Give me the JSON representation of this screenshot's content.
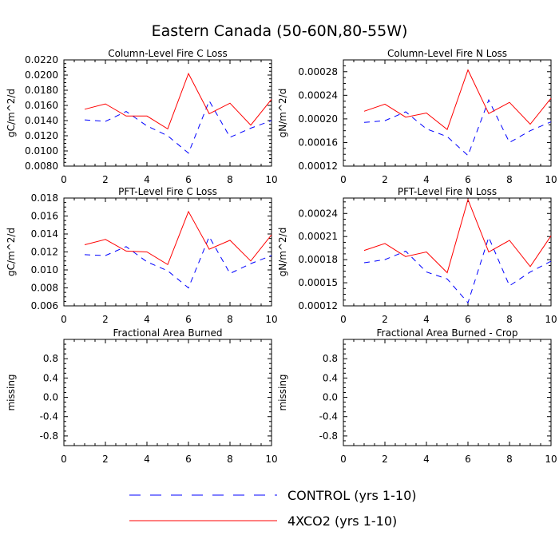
{
  "title": "Eastern Canada (50-60N,80-55W)",
  "colors": {
    "control": "#0000ff",
    "co2": "#ff0000"
  },
  "legend": [
    {
      "label": "CONTROL (yrs 1-10)",
      "series": "control",
      "dash": true
    },
    {
      "label": "4XCO2 (yrs 1-10)",
      "series": "co2",
      "dash": false
    }
  ],
  "chart_data": [
    {
      "type": "line",
      "title": "Column-Level Fire C Loss",
      "ylabel": "gC/m^2/d",
      "xlabel": "",
      "xlim": [
        0,
        10
      ],
      "ylim": [
        0.008,
        0.022
      ],
      "xticks": [
        "0",
        "2",
        "4",
        "6",
        "8",
        "10"
      ],
      "yticks": [
        "0.0080",
        "0.0100",
        "0.0120",
        "0.0140",
        "0.0160",
        "0.0180",
        "0.0200",
        "0.0220"
      ],
      "x": [
        1,
        2,
        3,
        4,
        5,
        6,
        7,
        8,
        9,
        10
      ],
      "series": [
        {
          "name": "CONTROL (yrs 1-10)",
          "key": "control",
          "values": [
            0.0141,
            0.0139,
            0.0152,
            0.0133,
            0.012,
            0.0097,
            0.0166,
            0.0118,
            0.013,
            0.014
          ]
        },
        {
          "name": "4XCO2 (yrs 1-10)",
          "key": "co2",
          "values": [
            0.0155,
            0.0162,
            0.0146,
            0.0146,
            0.0129,
            0.0202,
            0.0149,
            0.0163,
            0.0134,
            0.0168
          ]
        }
      ]
    },
    {
      "type": "line",
      "title": "Column-Level Fire N Loss",
      "ylabel": "gN/m^2/d",
      "xlabel": "",
      "xlim": [
        0,
        10
      ],
      "ylim": [
        0.00012,
        0.0003
      ],
      "xticks": [
        "0",
        "2",
        "4",
        "6",
        "8",
        "10"
      ],
      "yticks": [
        "0.00012",
        "0.00016",
        "0.00020",
        "0.00024",
        "0.00028"
      ],
      "x": [
        1,
        2,
        3,
        4,
        5,
        6,
        7,
        8,
        9,
        10
      ],
      "series": [
        {
          "name": "CONTROL (yrs 1-10)",
          "key": "control",
          "values": [
            0.000194,
            0.000197,
            0.000212,
            0.000183,
            0.00017,
            0.000138,
            0.000232,
            0.00016,
            0.00018,
            0.000195
          ]
        },
        {
          "name": "4XCO2 (yrs 1-10)",
          "key": "co2",
          "values": [
            0.000213,
            0.000225,
            0.000203,
            0.00021,
            0.000182,
            0.000283,
            0.000209,
            0.000228,
            0.000191,
            0.000235
          ]
        }
      ]
    },
    {
      "type": "line",
      "title": "PFT-Level Fire C Loss",
      "ylabel": "gC/m^2/d",
      "xlabel": "",
      "xlim": [
        0,
        10
      ],
      "ylim": [
        0.006,
        0.018
      ],
      "xticks": [
        "0",
        "2",
        "4",
        "6",
        "8",
        "10"
      ],
      "yticks": [
        "0.006",
        "0.008",
        "0.010",
        "0.012",
        "0.014",
        "0.016",
        "0.018"
      ],
      "x": [
        1,
        2,
        3,
        4,
        5,
        6,
        7,
        8,
        9,
        10
      ],
      "series": [
        {
          "name": "CONTROL (yrs 1-10)",
          "key": "control",
          "values": [
            0.0117,
            0.0116,
            0.0126,
            0.0109,
            0.0099,
            0.008,
            0.0137,
            0.0096,
            0.0107,
            0.0116
          ]
        },
        {
          "name": "4XCO2 (yrs 1-10)",
          "key": "co2",
          "values": [
            0.0128,
            0.0134,
            0.0121,
            0.012,
            0.0106,
            0.0165,
            0.0123,
            0.0133,
            0.011,
            0.0139
          ]
        }
      ]
    },
    {
      "type": "line",
      "title": "PFT-Level Fire N Loss",
      "ylabel": "gN/m^2/d",
      "xlabel": "",
      "xlim": [
        0,
        10
      ],
      "ylim": [
        0.00012,
        0.00026
      ],
      "xticks": [
        "0",
        "2",
        "4",
        "6",
        "8",
        "10"
      ],
      "yticks": [
        "0.00012",
        "0.00015",
        "0.00018",
        "0.00021",
        "0.00024"
      ],
      "x": [
        1,
        2,
        3,
        4,
        5,
        6,
        7,
        8,
        9,
        10
      ],
      "series": [
        {
          "name": "CONTROL (yrs 1-10)",
          "key": "control",
          "values": [
            0.000176,
            0.00018,
            0.000191,
            0.000164,
            0.000155,
            0.000124,
            0.000209,
            0.000146,
            0.000164,
            0.000178
          ]
        },
        {
          "name": "4XCO2 (yrs 1-10)",
          "key": "co2",
          "values": [
            0.000192,
            0.000201,
            0.000184,
            0.00019,
            0.000163,
            0.000258,
            0.00019,
            0.000205,
            0.000171,
            0.000211
          ]
        }
      ]
    },
    {
      "type": "line",
      "title": "Fractional Area Burned",
      "ylabel": "missing",
      "xlabel": "",
      "xlim": [
        0,
        10
      ],
      "ylim": [
        -1.0,
        1.2
      ],
      "xticks": [
        "0",
        "2",
        "4",
        "6",
        "8",
        "10"
      ],
      "yticks": [
        "-0.8",
        "-0.4",
        "0.0",
        "0.4",
        "0.8"
      ],
      "x": [],
      "series": []
    },
    {
      "type": "line",
      "title": "Fractional Area Burned - Crop",
      "ylabel": "missing",
      "xlabel": "",
      "xlim": [
        0,
        10
      ],
      "ylim": [
        -1.0,
        1.2
      ],
      "xticks": [
        "0",
        "2",
        "4",
        "6",
        "8",
        "10"
      ],
      "yticks": [
        "-0.8",
        "-0.4",
        "0.0",
        "0.4",
        "0.8"
      ],
      "x": [],
      "series": []
    }
  ]
}
